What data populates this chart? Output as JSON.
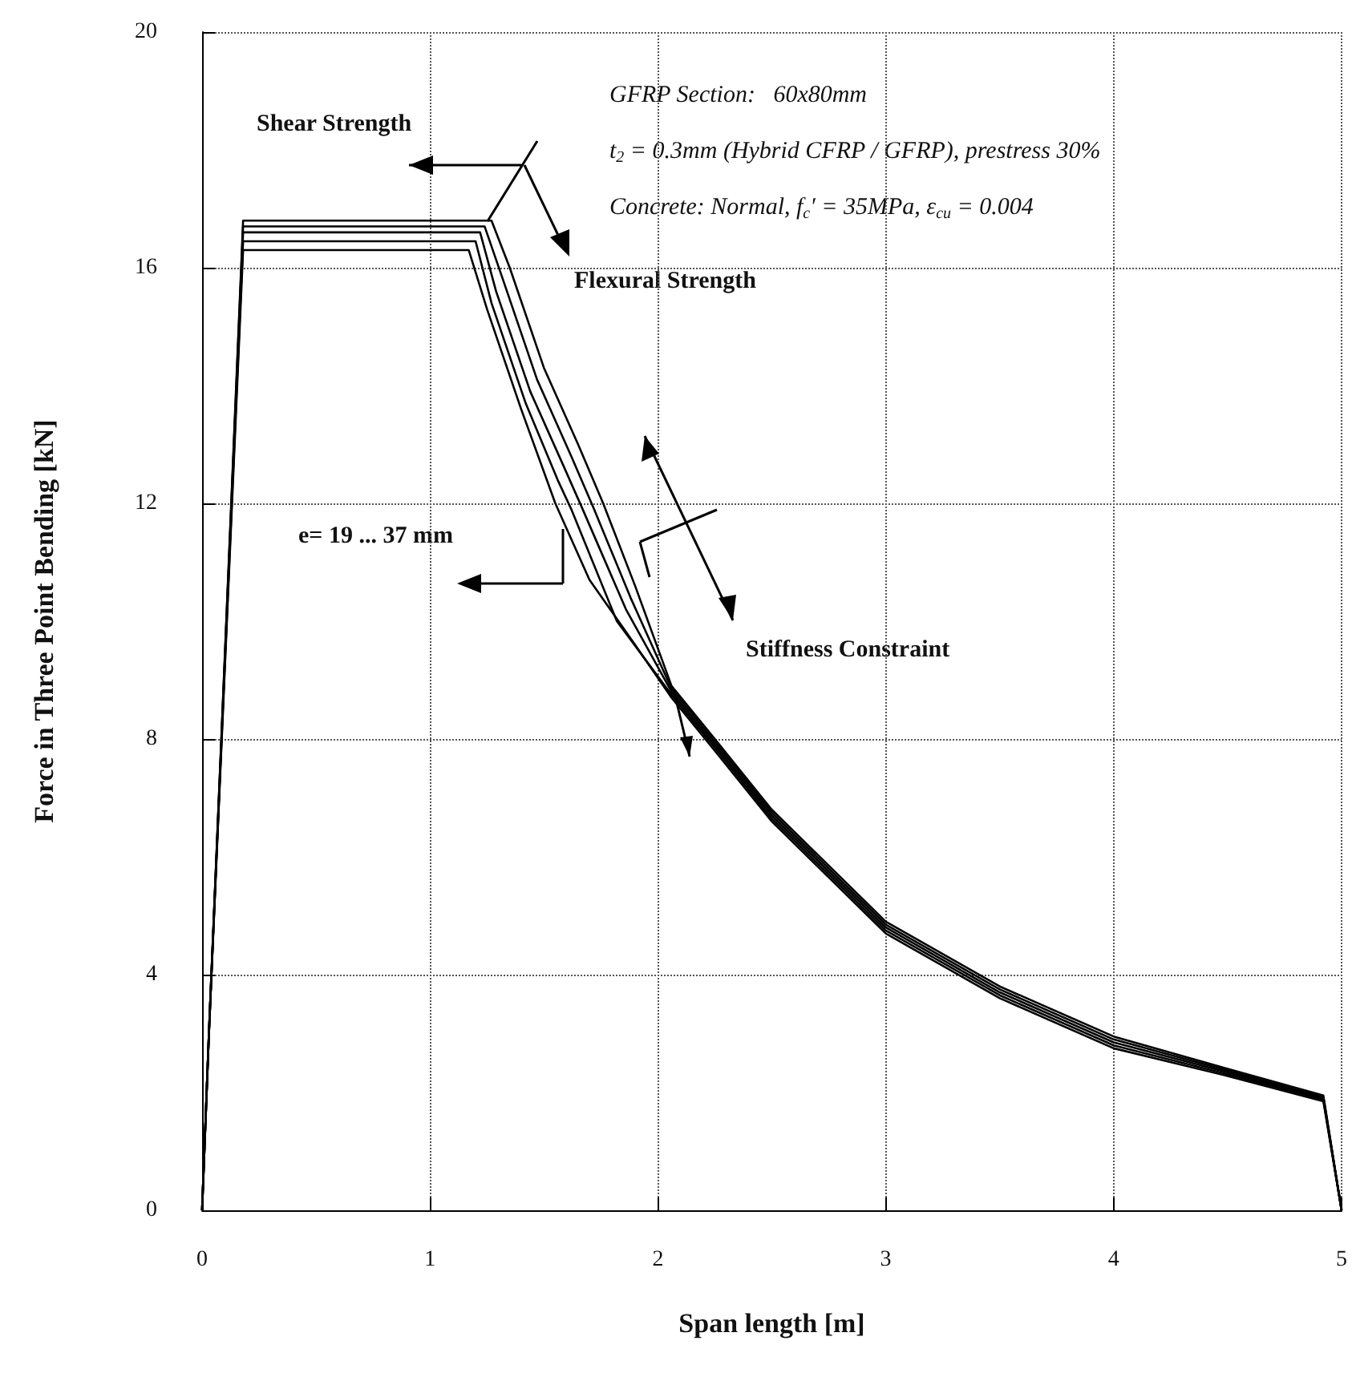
{
  "chart_data": {
    "type": "line",
    "xlabel": "Span length [m]",
    "ylabel": "Force in Three Point Bending [kN]",
    "xlim": [
      0,
      5
    ],
    "xticks": [
      0,
      1,
      2,
      3,
      4,
      5
    ],
    "ylim": [
      0,
      20
    ],
    "yticks": [
      0,
      4,
      8,
      12,
      16,
      20
    ],
    "grid": true,
    "marker": "none",
    "line_style": "solid",
    "series": [
      {
        "color": "#000000",
        "x": [
          0,
          0.03,
          0.18,
          1.27,
          1.35,
          1.5,
          1.65,
          1.76,
          1.9,
          2.06,
          2.25,
          2.5,
          3,
          3.5,
          4,
          4.5,
          4.92,
          5
        ],
        "values": [
          0,
          3,
          16.8,
          16.8,
          16.0,
          14.3,
          13.0,
          12.0,
          10.6,
          8.9,
          8.0,
          6.8,
          4.9,
          3.8,
          2.95,
          2.4,
          1.95,
          0
        ]
      },
      {
        "color": "#000000",
        "x": [
          0,
          0.03,
          0.18,
          1.24,
          1.32,
          1.47,
          1.62,
          1.72,
          1.88,
          2.06,
          2.25,
          2.5,
          3,
          3.5,
          4,
          4.5,
          4.92,
          5
        ],
        "values": [
          0,
          3,
          16.7,
          16.7,
          15.8,
          14.1,
          12.8,
          11.9,
          10.4,
          8.85,
          7.95,
          6.75,
          4.85,
          3.75,
          2.9,
          2.37,
          1.92,
          0
        ]
      },
      {
        "color": "#000000",
        "x": [
          0,
          0.03,
          0.18,
          1.22,
          1.29,
          1.44,
          1.59,
          1.67,
          1.86,
          2.06,
          2.25,
          2.5,
          3,
          3.5,
          4,
          4.5,
          4.92,
          5
        ],
        "values": [
          0,
          3,
          16.6,
          16.6,
          15.6,
          13.9,
          12.6,
          11.9,
          10.2,
          8.8,
          7.9,
          6.7,
          4.8,
          3.7,
          2.85,
          2.34,
          1.9,
          0
        ]
      },
      {
        "color": "#000000",
        "x": [
          0,
          0.03,
          0.18,
          1.2,
          1.27,
          1.42,
          1.56,
          1.62,
          1.82,
          2.06,
          2.25,
          2.5,
          3,
          3.5,
          4,
          4.5,
          4.92,
          5
        ],
        "values": [
          0,
          3,
          16.45,
          16.45,
          15.4,
          13.7,
          12.4,
          11.9,
          10.0,
          8.75,
          7.85,
          6.65,
          4.75,
          3.65,
          2.8,
          2.31,
          1.88,
          0
        ]
      },
      {
        "color": "#000000",
        "x": [
          0,
          0.03,
          0.18,
          1.17,
          1.25,
          1.4,
          1.55,
          1.7,
          1.9,
          2.06,
          2.25,
          2.5,
          3,
          3.5,
          4,
          4.5,
          4.92,
          5
        ],
        "values": [
          0,
          3,
          16.3,
          16.3,
          15.3,
          13.6,
          12.0,
          10.7,
          9.6,
          8.7,
          7.8,
          6.6,
          4.7,
          3.6,
          2.75,
          2.28,
          1.85,
          0
        ]
      }
    ],
    "annotations": [
      "GFRP Section:   60x80mm",
      "t$_{2}$ = 0.3mm (Hybrid CFRP / GFRP), prestress 30%",
      "Concrete: Normal, f$_{c}$′ = 35MPa, ε$_{cu}$ = 0.004",
      "Shear Strength",
      "Flexural Strength",
      "e= 19 ... 37 mm",
      "Stiffness Constraint"
    ]
  }
}
